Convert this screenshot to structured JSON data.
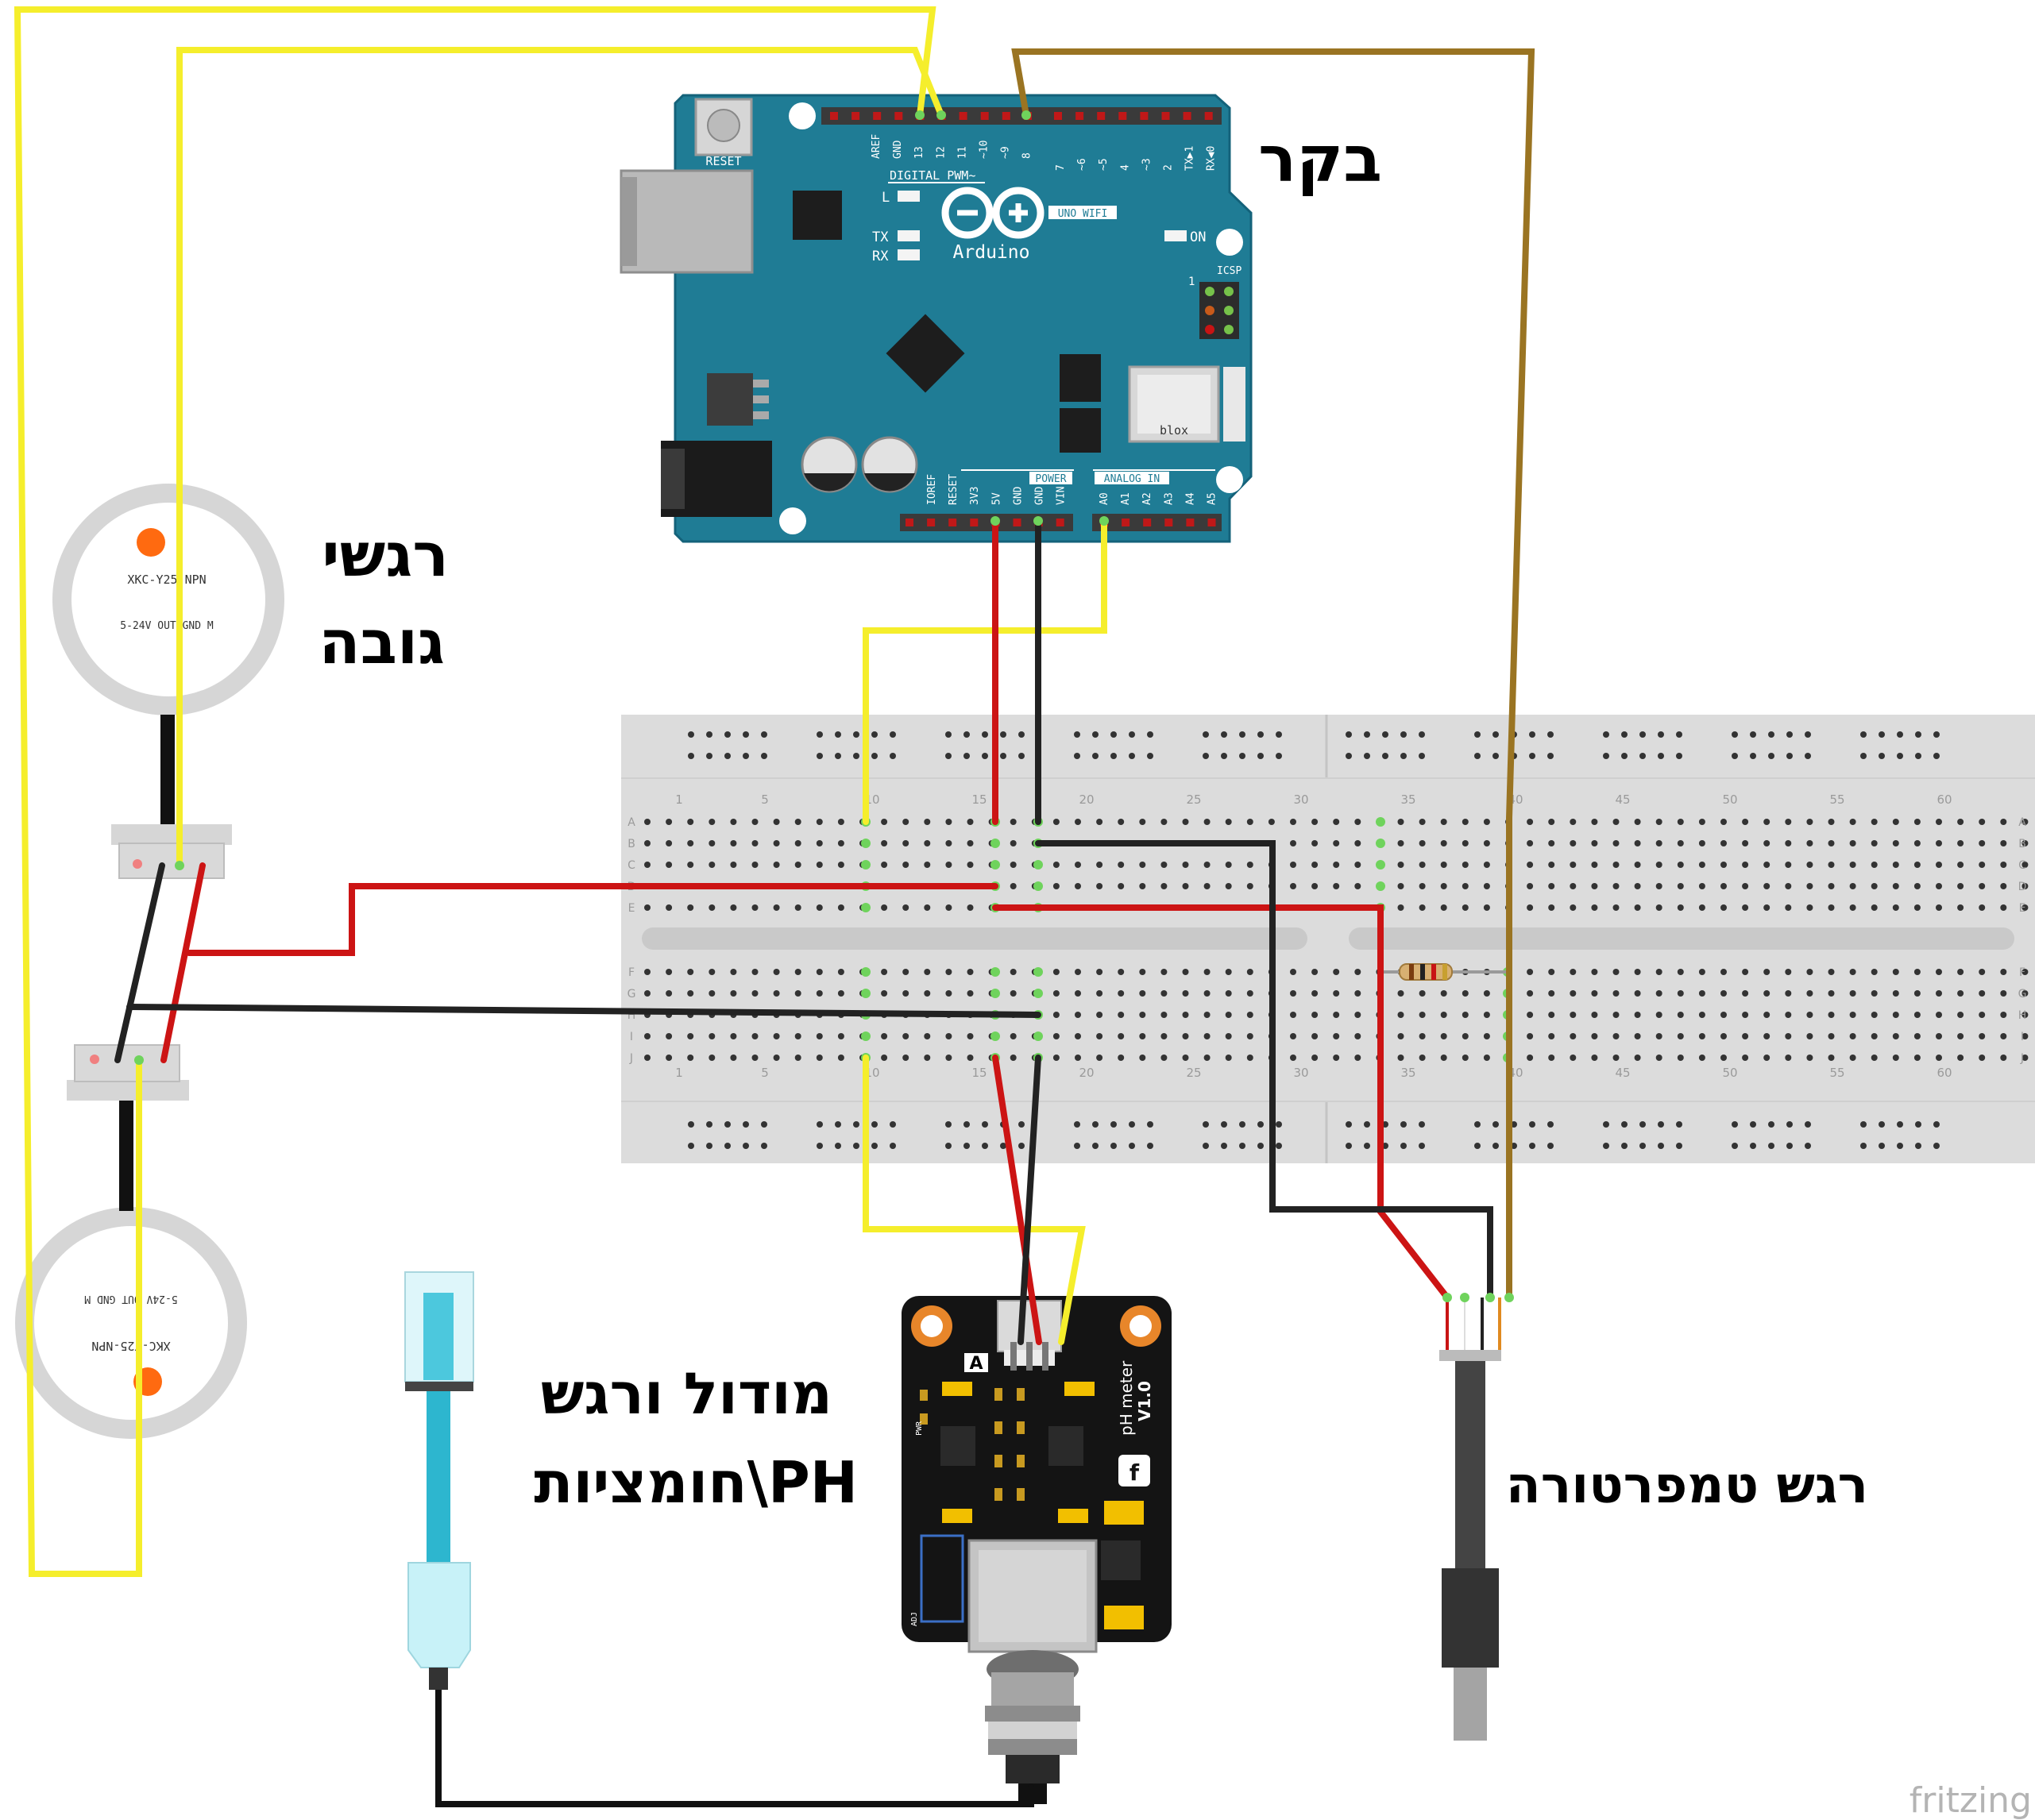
{
  "labels": {
    "controller": "בקר",
    "height_sensors_line1": "רגשי",
    "height_sensors_line2": "גובה",
    "ph_line1": "מודול ורגש",
    "ph_line2": "חומציות\\PH",
    "temp_sensor": "רגש טמפרטורה",
    "watermark": "fritzing"
  },
  "arduino": {
    "reset": "RESET",
    "digital_header": "DIGITAL PWM~",
    "brand": "Arduino",
    "model": "UNO WIFI",
    "led_l": "L",
    "led_tx": "TX",
    "led_rx": "RX",
    "led_on": "ON",
    "icsp": "ICSP",
    "icsp_pin1": "1",
    "module": "blox",
    "power": "POWER",
    "analog": "ANALOG IN",
    "digital_pins": [
      "AREF",
      "GND",
      "13",
      "12",
      "11",
      "~10",
      "~9",
      "8",
      "7",
      "~6",
      "~5",
      "4",
      "~3",
      "2",
      "TX▶1",
      "RX◀0"
    ],
    "power_pins": [
      "IOREF",
      "RESET",
      "3V3",
      "5V",
      "GND",
      "GND",
      "VIN"
    ],
    "analog_pins": [
      "A0",
      "A1",
      "A2",
      "A3",
      "A4",
      "A5"
    ]
  },
  "breadboard": {
    "col_numbers": [
      "1",
      "5",
      "10",
      "15",
      "20",
      "25",
      "30",
      "35",
      "40",
      "45",
      "50",
      "55",
      "60"
    ],
    "row_letters_top": [
      "A",
      "B",
      "C",
      "D",
      "E"
    ],
    "row_letters_bottom": [
      "F",
      "G",
      "H",
      "I",
      "J"
    ]
  },
  "level_sensor_top": {
    "model": "XKC-Y25-NPN",
    "pins": "5-24V OUT GND M"
  },
  "level_sensor_bottom": {
    "model": "XKC-Y25-NPN",
    "pins": "5-24V OUT GND M"
  },
  "ph_board": {
    "title": "pH meter",
    "version": "V1.0",
    "channel": "A",
    "pwr": "PWR",
    "adj": "ADJ",
    "logo": "f"
  },
  "colors": {
    "yellow_wire": "#f5ee2c",
    "red_wire": "#cc1414",
    "black_wire": "#222222",
    "brown_wire": "#9a7422",
    "arduino_board": "#1f7c95",
    "breadboard": "#dcdcdc"
  }
}
